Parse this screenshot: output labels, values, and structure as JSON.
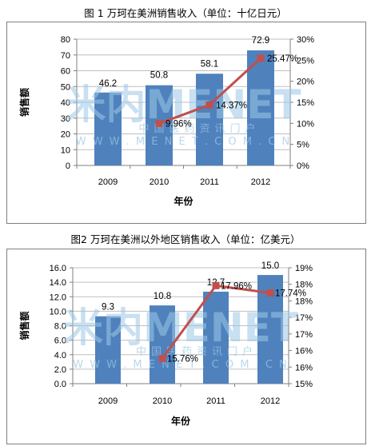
{
  "chart_data": [
    {
      "type": "bar",
      "title": "图 1  万珂在美洲销售收入（单位：十亿日元）",
      "xlabel": "年份",
      "ylabel": "销售额",
      "categories": [
        "2009",
        "2010",
        "2011",
        "2012"
      ],
      "series": [
        {
          "values": [
            46.2,
            50.8,
            58.1,
            72.9
          ],
          "color": "#4f81bd",
          "labels": [
            "46.2",
            "50.8",
            "58.1",
            "72.9"
          ]
        },
        {
          "type": "line",
          "axis": "right",
          "values": [
            null,
            9.96,
            14.37,
            25.47
          ],
          "color": "#c0504d",
          "labels": [
            "",
            "9.96%",
            "14.37%",
            "25.47%"
          ]
        }
      ],
      "y_ticks": [
        "0",
        "10",
        "20",
        "30",
        "40",
        "50",
        "60",
        "70",
        "80"
      ],
      "ylim": [
        0,
        80
      ],
      "y2_ticks": [
        "0%",
        "5%",
        "10%",
        "15%",
        "20%",
        "25%",
        "30%"
      ],
      "y2lim": [
        0,
        30
      ],
      "grid": true,
      "legend": "none"
    },
    {
      "type": "bar",
      "title": "图2  万珂在美洲以外地区销售收入（单位：亿美元）",
      "xlabel": "年份",
      "ylabel": "销售额",
      "categories": [
        "2009",
        "2010",
        "2011",
        "2012"
      ],
      "series": [
        {
          "values": [
            9.3,
            10.8,
            12.7,
            15.0
          ],
          "color": "#4f81bd",
          "labels": [
            "9.3",
            "10.8",
            "12.7",
            "15.0"
          ]
        },
        {
          "type": "line",
          "axis": "right",
          "values": [
            null,
            15.76,
            17.96,
            17.74
          ],
          "color": "#c0504d",
          "labels": [
            "",
            "15.76%",
            "17.96%",
            "17.74%"
          ]
        }
      ],
      "y_ticks": [
        "0.0",
        "2.0",
        "4.0",
        "6.0",
        "8.0",
        "10.0",
        "12.0",
        "14.0",
        "16.0"
      ],
      "ylim": [
        0,
        16
      ],
      "y2_ticks": [
        "15%",
        "16%",
        "16%",
        "17%",
        "17%",
        "18%",
        "18%",
        "19%"
      ],
      "y2lim": [
        15,
        18.5
      ],
      "grid": true,
      "legend": "none"
    }
  ],
  "watermark": {
    "logo": "米内MENET",
    "domain": "W W W . M E N E T . C O M . C N",
    "tagline": "中国医药资讯门户"
  }
}
